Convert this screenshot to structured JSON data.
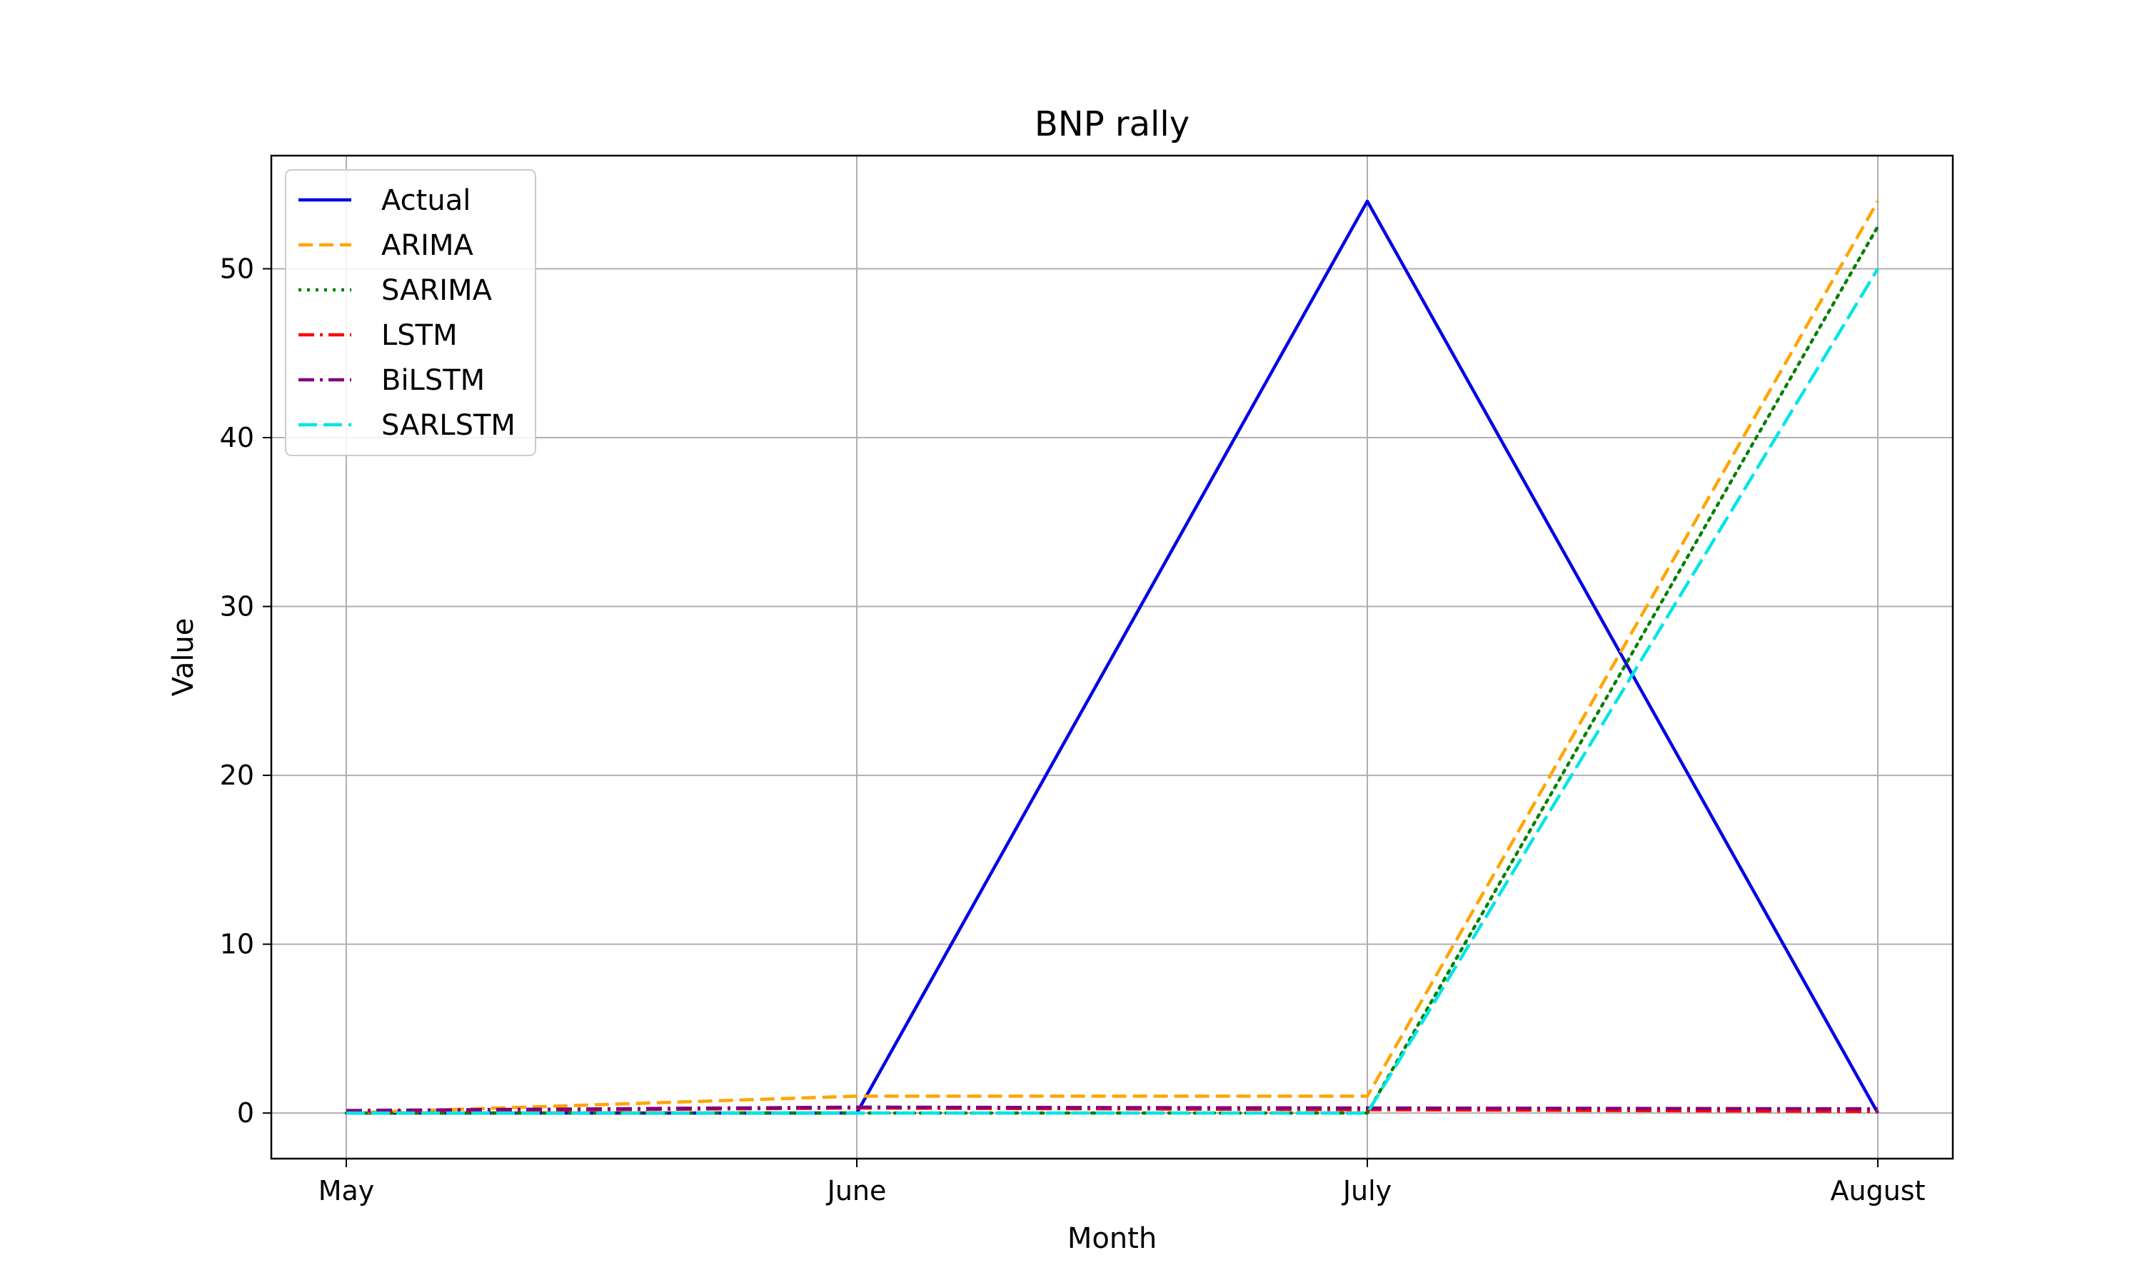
{
  "chart_data": {
    "type": "line",
    "title": "BNP rally",
    "xlabel": "Month",
    "ylabel": "Value",
    "categories": [
      "May",
      "June",
      "July",
      "August"
    ],
    "ylim": [
      -2.7,
      56.7
    ],
    "yticks": [
      0,
      10,
      20,
      30,
      40,
      50
    ],
    "grid": true,
    "legend_position": "top-left",
    "series": [
      {
        "name": "Actual",
        "color": "#0000e6",
        "style": "solid",
        "values": [
          0,
          0,
          54,
          0
        ]
      },
      {
        "name": "ARIMA",
        "color": "#ffa500",
        "style": "dashed",
        "values": [
          0,
          1,
          1,
          54
        ]
      },
      {
        "name": "SARIMA",
        "color": "#008000",
        "style": "dotted",
        "values": [
          0,
          0,
          0,
          52.5
        ]
      },
      {
        "name": "LSTM",
        "color": "#ff0000",
        "style": "dashdot",
        "values": [
          0.1,
          0.3,
          0.2,
          0.1
        ]
      },
      {
        "name": "BiLSTM",
        "color": "#800080",
        "style": "dashdot",
        "values": [
          0.15,
          0.35,
          0.3,
          0.25
        ]
      },
      {
        "name": "SARLSTM",
        "color": "#00e5e5",
        "style": "longdash",
        "values": [
          0,
          0,
          0,
          50
        ]
      }
    ]
  }
}
